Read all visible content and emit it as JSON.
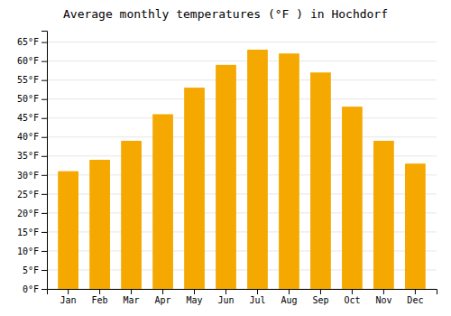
{
  "chart_data": {
    "type": "bar",
    "title": "Average monthly temperatures (°F ) in Hochdorf",
    "categories": [
      "Jan",
      "Feb",
      "Mar",
      "Apr",
      "May",
      "Jun",
      "Jul",
      "Aug",
      "Sep",
      "Oct",
      "Nov",
      "Dec"
    ],
    "values": [
      31,
      34,
      39,
      46,
      53,
      59,
      63,
      62,
      57,
      48,
      39,
      33
    ],
    "color": "#F5A800",
    "ylim": [
      0,
      68
    ],
    "yticks": [
      {
        "value": 0,
        "label": "0°F"
      },
      {
        "value": 5,
        "label": "5°F"
      },
      {
        "value": 10,
        "label": "10°F"
      },
      {
        "value": 15,
        "label": "15°F"
      },
      {
        "value": 20,
        "label": "20°F"
      },
      {
        "value": 25,
        "label": "25°F"
      },
      {
        "value": 30,
        "label": "30°F"
      },
      {
        "value": 35,
        "label": "35°F"
      },
      {
        "value": 40,
        "label": "40°F"
      },
      {
        "value": 45,
        "label": "45°F"
      },
      {
        "value": 50,
        "label": "50°F"
      },
      {
        "value": 55,
        "label": "55°F"
      },
      {
        "value": 60,
        "label": "60°F"
      },
      {
        "value": 65,
        "label": "65°F"
      }
    ],
    "grid": true
  }
}
